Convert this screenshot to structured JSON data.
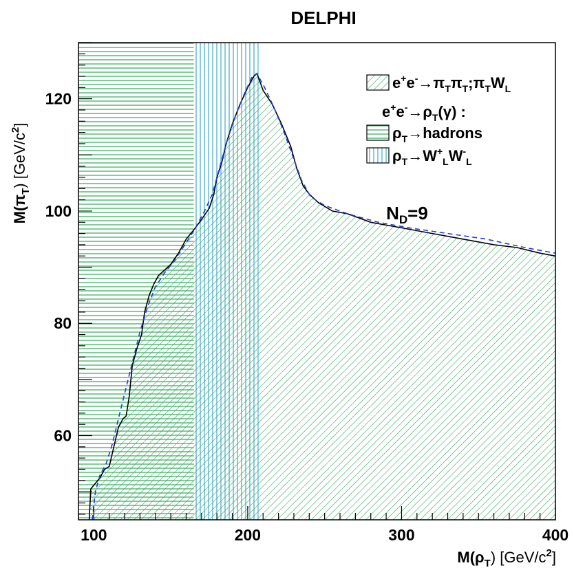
{
  "chart_data": {
    "type": "area",
    "title": "DELPHI",
    "xlabel": {
      "pre": "M(ρ",
      "sub": "T",
      "post": ") [GeV/c",
      "sup": "2",
      "end": "]"
    },
    "ylabel": {
      "pre": "M(π",
      "sub": "T",
      "post": ") [GeV/c",
      "sup": "2",
      "end": "]"
    },
    "xlim": [
      90,
      400
    ],
    "ylim": [
      45,
      130
    ],
    "x_ticks": [
      100,
      200,
      300,
      400
    ],
    "y_ticks": [
      60,
      80,
      100,
      120
    ],
    "colors": {
      "hatch": "#2eaa5a",
      "vertical_hatch": "#3aa9c8",
      "dashed": "#1f3fd6",
      "frame": "#000000"
    },
    "excluded_hadrons": {
      "x": [
        90,
        165
      ],
      "y": [
        45,
        130
      ]
    },
    "excluded_WW": {
      "x": [
        165,
        207
      ],
      "y": [
        45,
        130
      ]
    },
    "pipi_exclusion_boundary": [
      [
        97,
        45
      ],
      [
        98,
        50.5
      ],
      [
        101,
        51.5
      ],
      [
        104,
        52.5
      ],
      [
        107,
        54
      ],
      [
        110,
        54.5
      ],
      [
        113,
        58
      ],
      [
        116,
        61.5
      ],
      [
        119,
        63
      ],
      [
        121,
        63.5
      ],
      [
        123,
        67
      ],
      [
        125,
        72.5
      ],
      [
        128,
        75.5
      ],
      [
        131,
        78
      ],
      [
        133,
        82
      ],
      [
        136,
        85
      ],
      [
        139,
        87
      ],
      [
        142,
        88.5
      ],
      [
        146,
        89.5
      ],
      [
        150,
        90.5
      ],
      [
        155,
        92.5
      ],
      [
        160,
        95
      ],
      [
        166,
        97
      ],
      [
        170,
        98.5
      ],
      [
        175,
        100.5
      ],
      [
        178,
        103
      ],
      [
        180,
        106
      ],
      [
        183,
        108.5
      ],
      [
        186,
        112
      ],
      [
        190,
        115.5
      ],
      [
        195,
        119
      ],
      [
        200,
        122
      ],
      [
        204,
        124
      ],
      [
        206,
        124.5
      ],
      [
        210,
        121.5
      ],
      [
        216,
        119
      ],
      [
        222,
        115.5
      ],
      [
        228,
        111.5
      ],
      [
        232,
        107.5
      ],
      [
        236,
        104.5
      ],
      [
        240,
        103
      ],
      [
        246,
        101.5
      ],
      [
        255,
        100
      ],
      [
        265,
        99.5
      ],
      [
        280,
        98
      ],
      [
        300,
        97
      ],
      [
        320,
        96
      ],
      [
        340,
        95
      ],
      [
        360,
        94
      ],
      [
        375,
        93.5
      ],
      [
        390,
        92.5
      ],
      [
        400,
        92
      ]
    ],
    "expected_boundary_dashed": [
      [
        99,
        45
      ],
      [
        101,
        50
      ],
      [
        104,
        53
      ],
      [
        108,
        55
      ],
      [
        112,
        58.5
      ],
      [
        116,
        63
      ],
      [
        120,
        67.5
      ],
      [
        125,
        73
      ],
      [
        130,
        78.5
      ],
      [
        135,
        83
      ],
      [
        140,
        86.5
      ],
      [
        146,
        89
      ],
      [
        152,
        91
      ],
      [
        158,
        93.5
      ],
      [
        165,
        96.5
      ],
      [
        172,
        100
      ],
      [
        177,
        103
      ],
      [
        181,
        107
      ],
      [
        186,
        112
      ],
      [
        192,
        117
      ],
      [
        198,
        121
      ],
      [
        203,
        124
      ],
      [
        206,
        124.5
      ],
      [
        211,
        122
      ],
      [
        217,
        118.5
      ],
      [
        223,
        114.5
      ],
      [
        229,
        110
      ],
      [
        235,
        105.5
      ],
      [
        241,
        102.5
      ],
      [
        250,
        101
      ],
      [
        265,
        99.5
      ],
      [
        285,
        98
      ],
      [
        305,
        97
      ],
      [
        330,
        96
      ],
      [
        355,
        95
      ],
      [
        380,
        93.5
      ],
      [
        400,
        92.5
      ]
    ],
    "annotation": {
      "main": "N",
      "sub": "D",
      "rest": "=9",
      "x": 290,
      "y": 98.5
    },
    "legend": {
      "placement": "top-right",
      "entries": [
        {
          "kind": "pipi",
          "parts": [
            [
              "e",
              "n"
            ],
            [
              "+",
              "sup"
            ],
            [
              "e",
              "n"
            ],
            [
              "-",
              "sup"
            ],
            [
              "→π",
              "n"
            ],
            [
              "T",
              "sub"
            ],
            [
              "π",
              "n"
            ],
            [
              "T",
              "sub"
            ],
            [
              ";π",
              "n"
            ],
            [
              "T",
              "sub"
            ],
            [
              "W",
              "n"
            ],
            [
              "L",
              "sub"
            ]
          ]
        },
        {
          "kind": "header",
          "parts": [
            [
              "e",
              "n"
            ],
            [
              "+",
              "sup"
            ],
            [
              "e",
              "n"
            ],
            [
              "-",
              "sup"
            ],
            [
              "→ρ",
              "n"
            ],
            [
              "T",
              "sub"
            ],
            [
              "(γ) :",
              "n"
            ]
          ]
        },
        {
          "kind": "hadrons",
          "parts": [
            [
              "ρ",
              "n"
            ],
            [
              "T",
              "sub"
            ],
            [
              "→hadrons",
              "n"
            ]
          ]
        },
        {
          "kind": "ww",
          "parts": [
            [
              "ρ",
              "n"
            ],
            [
              "T",
              "sub"
            ],
            [
              "→W",
              "n"
            ],
            [
              "+",
              "sup"
            ],
            [
              "L",
              "sub"
            ],
            [
              "W",
              "n"
            ],
            [
              "-",
              "sup"
            ],
            [
              "L",
              "sub"
            ]
          ]
        }
      ]
    }
  }
}
